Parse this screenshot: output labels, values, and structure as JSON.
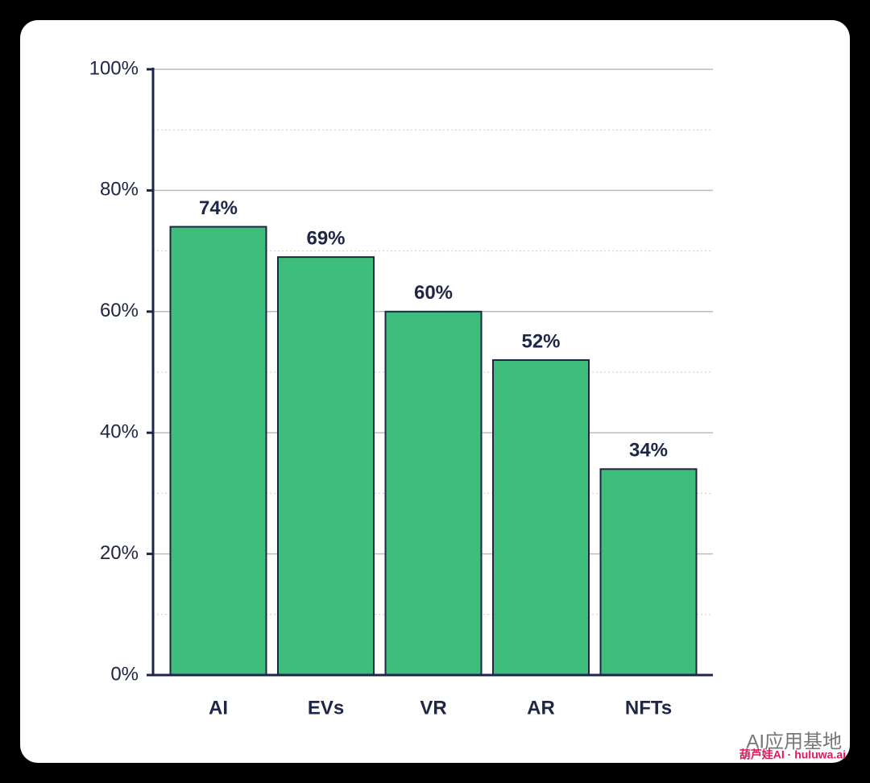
{
  "chart_data": {
    "type": "bar",
    "categories": [
      "AI",
      "EVs",
      "VR",
      "AR",
      "NFTs"
    ],
    "values": [
      74,
      69,
      60,
      52,
      34
    ],
    "value_labels": [
      "74%",
      "69%",
      "60%",
      "52%",
      "34%"
    ],
    "color": "#3fbd7d",
    "ylim": [
      0,
      100
    ],
    "yticks": [
      {
        "value": 0,
        "label": "0%"
      },
      {
        "value": 20,
        "label": "20%"
      },
      {
        "value": 40,
        "label": "40%"
      },
      {
        "value": 60,
        "label": "60%"
      },
      {
        "value": 80,
        "label": "80%"
      },
      {
        "value": 100,
        "label": "100%"
      }
    ],
    "minor_yticks": [
      10,
      30,
      50,
      70,
      90
    ],
    "grid": true
  },
  "watermark": {
    "account": "AI应用基地",
    "source": "葫芦娃AI · huluwa.ai"
  }
}
